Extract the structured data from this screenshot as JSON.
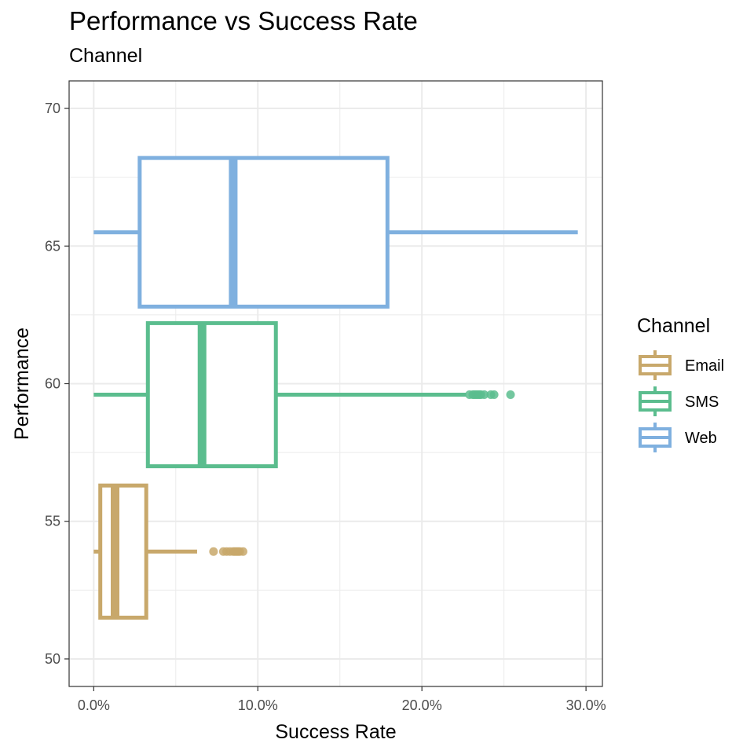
{
  "chart_data": {
    "type": "boxplot",
    "title": "Performance vs Success Rate",
    "subtitle": "Channel",
    "xlabel": "Success Rate",
    "ylabel": "Performance",
    "xlim": [
      -0.015,
      0.31
    ],
    "ylim": [
      49,
      71
    ],
    "xticks": [
      0,
      0.1,
      0.2,
      0.3
    ],
    "xtick_labels": [
      "0.0%",
      "10.0%",
      "20.0%",
      "30.0%"
    ],
    "yticks": [
      50,
      55,
      60,
      65,
      70
    ],
    "ytick_labels": [
      "50",
      "55",
      "60",
      "65",
      "70"
    ],
    "grid": true,
    "legend": {
      "title": "Channel",
      "position": "right",
      "entries": [
        "Email",
        "SMS",
        "Web"
      ]
    },
    "series": [
      {
        "name": "Email",
        "color": "#C8A86B",
        "y_center": 53.9,
        "y_bottom": 51.5,
        "y_top": 56.3,
        "whisker_low": 0.0,
        "q1": 0.004,
        "median": 0.013,
        "q3": 0.032,
        "whisker_high": 0.063,
        "outliers": [
          0.073,
          0.079,
          0.081,
          0.083,
          0.085,
          0.086,
          0.087,
          0.088,
          0.089,
          0.091
        ]
      },
      {
        "name": "SMS",
        "color": "#5BBD8E",
        "y_center": 59.6,
        "y_bottom": 57.0,
        "y_top": 62.2,
        "whisker_low": 0.0,
        "q1": 0.033,
        "median": 0.066,
        "q3": 0.111,
        "whisker_high": 0.227,
        "outliers": [
          0.229,
          0.231,
          0.232,
          0.233,
          0.234,
          0.235,
          0.236,
          0.238,
          0.242,
          0.244,
          0.254
        ]
      },
      {
        "name": "Web",
        "color": "#7FB0DF",
        "y_center": 65.5,
        "y_bottom": 62.8,
        "y_top": 68.2,
        "whisker_low": 0.0,
        "q1": 0.028,
        "median": 0.085,
        "q3": 0.179,
        "whisker_high": 0.295,
        "outliers": []
      }
    ]
  }
}
